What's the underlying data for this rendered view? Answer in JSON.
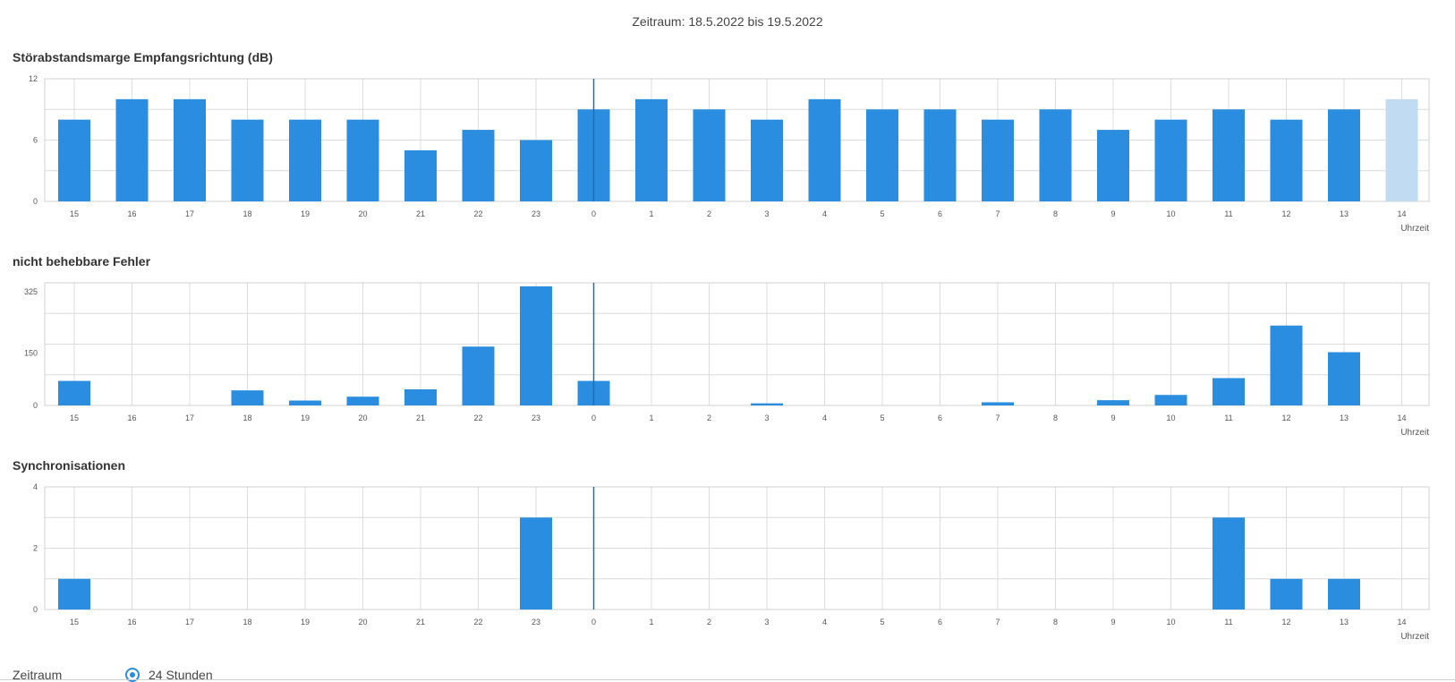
{
  "period_title": "Zeitraum: 18.5.2022 bis 19.5.2022",
  "colors": {
    "bar": "#2b8ddf",
    "bar_faded": "#c1dcf2",
    "grid": "#dcdcdc",
    "marker": "#1f6fb0"
  },
  "chart_data": [
    {
      "type": "bar",
      "title": "Störabstandsmarge Empfangsrichtung (dB)",
      "xlabel": "Uhrzeit",
      "ylabel": "",
      "categories": [
        "15",
        "16",
        "17",
        "18",
        "19",
        "20",
        "21",
        "22",
        "23",
        "0",
        "1",
        "2",
        "3",
        "4",
        "5",
        "6",
        "7",
        "8",
        "9",
        "10",
        "11",
        "12",
        "13",
        "14"
      ],
      "values": [
        8,
        10,
        10,
        8,
        8,
        8,
        5,
        7,
        6,
        9,
        10,
        9,
        8,
        10,
        9,
        9,
        8,
        9,
        7,
        8,
        9,
        8,
        9,
        10
      ],
      "highlighted_category": "14",
      "ylim": [
        0,
        12
      ],
      "yticks": [
        0,
        6,
        12
      ],
      "grid": true
    },
    {
      "type": "bar",
      "title": "nicht behebbare Fehler",
      "xlabel": "Uhrzeit",
      "ylabel": "",
      "categories": [
        "15",
        "16",
        "17",
        "18",
        "19",
        "20",
        "21",
        "22",
        "23",
        "0",
        "1",
        "2",
        "3",
        "4",
        "5",
        "6",
        "7",
        "8",
        "9",
        "10",
        "11",
        "12",
        "13",
        "14"
      ],
      "values": [
        70,
        0,
        0,
        43,
        14,
        25,
        46,
        168,
        340,
        70,
        0,
        0,
        6,
        0,
        0,
        0,
        9,
        0,
        15,
        30,
        78,
        228,
        152,
        0
      ],
      "ylim": [
        0,
        350
      ],
      "yticks": [
        0,
        150,
        325
      ],
      "grid": true
    },
    {
      "type": "bar",
      "title": "Synchronisationen",
      "xlabel": "Uhrzeit",
      "ylabel": "",
      "categories": [
        "15",
        "16",
        "17",
        "18",
        "19",
        "20",
        "21",
        "22",
        "23",
        "0",
        "1",
        "2",
        "3",
        "4",
        "5",
        "6",
        "7",
        "8",
        "9",
        "10",
        "11",
        "12",
        "13",
        "14"
      ],
      "values": [
        1,
        0,
        0,
        0,
        0,
        0,
        0,
        0,
        3,
        0,
        0,
        0,
        0,
        0,
        0,
        0,
        0,
        0,
        0,
        0,
        3,
        1,
        1,
        0
      ],
      "ylim": [
        0,
        4
      ],
      "yticks": [
        0,
        2,
        4
      ],
      "grid": true
    }
  ],
  "controls": {
    "period_label": "Zeitraum",
    "option_24h_label": "24 Stunden"
  }
}
